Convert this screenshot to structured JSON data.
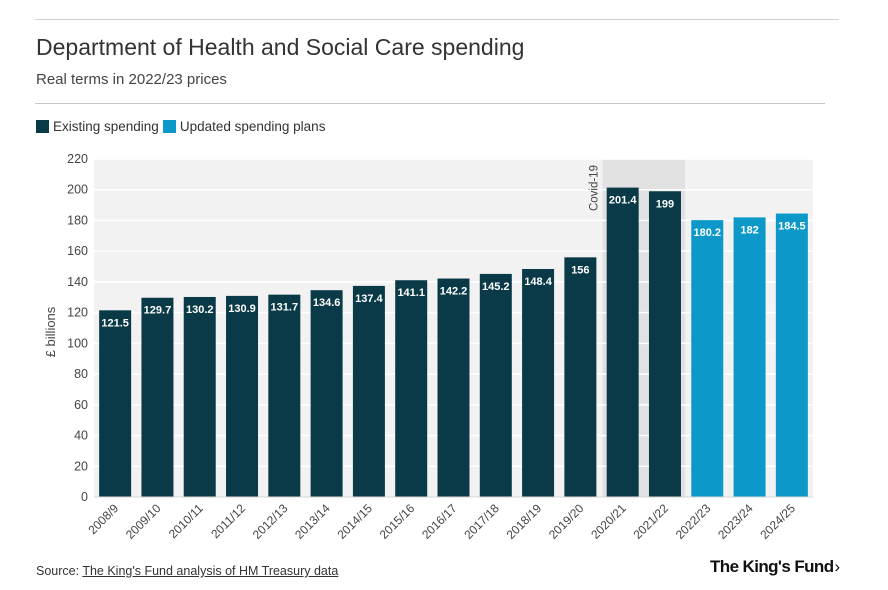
{
  "colors": {
    "existing": "#0a3a47",
    "updated": "#0c99c9",
    "plot_bg": "#f2f2f2",
    "grid": "#ffffff",
    "highlight": "#e1e1e1",
    "bar_label": "#ffffff"
  },
  "legend": {
    "existing_label": "Existing spending",
    "updated_label": "Updated spending plans"
  },
  "footer": {
    "source_prefix": "Source: ",
    "source_link": "The King's Fund analysis of HM Treasury data"
  },
  "logo": {
    "text": "The King's Fund",
    "chevron": "›"
  },
  "chart_data": {
    "type": "bar",
    "title": "Department of Health and Social Care spending",
    "subtitle": "Real terms in 2022/23 prices",
    "xlabel": "",
    "ylabel": "£ billions",
    "ylim": [
      0,
      220
    ],
    "yticks": [
      0,
      20,
      40,
      60,
      80,
      100,
      120,
      140,
      160,
      180,
      200,
      220
    ],
    "grid": true,
    "legend_position": "top-left",
    "categories": [
      "2008/9",
      "2009/10",
      "2010/11",
      "2011/12",
      "2012/13",
      "2013/14",
      "2014/15",
      "2015/16",
      "2016/17",
      "2017/18",
      "2018/19",
      "2019/20",
      "2020/21",
      "2021/22",
      "2022/23",
      "2023/24",
      "2024/25"
    ],
    "series": [
      {
        "name": "Existing spending",
        "values": [
          121.5,
          129.7,
          130.2,
          130.9,
          131.7,
          134.6,
          137.4,
          141.1,
          142.2,
          145.2,
          148.4,
          156,
          201.4,
          199,
          null,
          null,
          null
        ]
      },
      {
        "name": "Updated spending plans",
        "values": [
          null,
          null,
          null,
          null,
          null,
          null,
          null,
          null,
          null,
          null,
          null,
          null,
          null,
          null,
          180.2,
          182,
          184.5
        ]
      }
    ],
    "data_labels": [
      "121.5",
      "129.7",
      "130.2",
      "130.9",
      "131.7",
      "134.6",
      "137.4",
      "141.1",
      "142.2",
      "145.2",
      "148.4",
      "156",
      "201.4",
      "199",
      "180.2",
      "182",
      "184.5"
    ],
    "annotations": [
      {
        "text": "Covid-19",
        "categories": [
          "2020/21",
          "2021/22"
        ]
      }
    ]
  }
}
